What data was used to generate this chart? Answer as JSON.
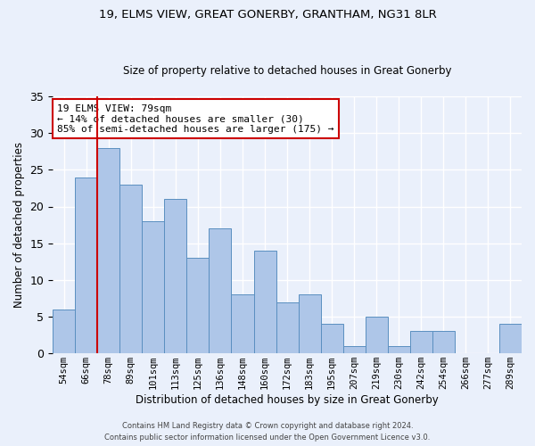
{
  "title_line1": "19, ELMS VIEW, GREAT GONERBY, GRANTHAM, NG31 8LR",
  "title_line2": "Size of property relative to detached houses in Great Gonerby",
  "xlabel": "Distribution of detached houses by size in Great Gonerby",
  "ylabel": "Number of detached properties",
  "footer_line1": "Contains HM Land Registry data © Crown copyright and database right 2024.",
  "footer_line2": "Contains public sector information licensed under the Open Government Licence v3.0.",
  "categories": [
    "54sqm",
    "66sqm",
    "78sqm",
    "89sqm",
    "101sqm",
    "113sqm",
    "125sqm",
    "136sqm",
    "148sqm",
    "160sqm",
    "172sqm",
    "183sqm",
    "195sqm",
    "207sqm",
    "219sqm",
    "230sqm",
    "242sqm",
    "254sqm",
    "266sqm",
    "277sqm",
    "289sqm"
  ],
  "values": [
    6,
    24,
    28,
    23,
    18,
    21,
    13,
    17,
    8,
    14,
    7,
    8,
    4,
    1,
    5,
    1,
    3,
    3,
    0,
    0,
    4
  ],
  "bar_color": "#aec6e8",
  "bar_edge_color": "#5a8fc0",
  "annotation_text": "19 ELMS VIEW: 79sqm\n← 14% of detached houses are smaller (30)\n85% of semi-detached houses are larger (175) →",
  "annotation_box_color": "#ffffff",
  "annotation_box_edge_color": "#cc0000",
  "vline_color": "#cc0000",
  "vline_x_index": 2,
  "ylim": [
    0,
    35
  ],
  "yticks": [
    0,
    5,
    10,
    15,
    20,
    25,
    30,
    35
  ],
  "background_color": "#eaf0fb",
  "grid_color": "#ffffff"
}
